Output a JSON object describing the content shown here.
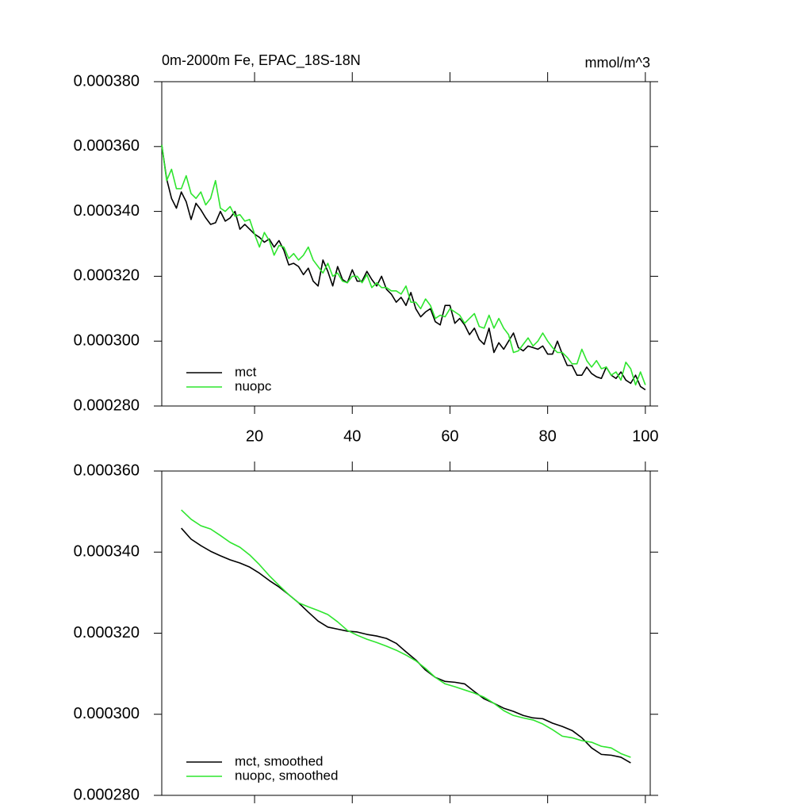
{
  "chart_data": [
    {
      "type": "line",
      "title": "0m-2000m Fe, EPAC_18S-18N",
      "unit_label": "mmol/m^3",
      "x": [
        1,
        2,
        3,
        4,
        5,
        6,
        7,
        8,
        9,
        10,
        11,
        12,
        13,
        14,
        15,
        16,
        17,
        18,
        19,
        20,
        21,
        22,
        23,
        24,
        25,
        26,
        27,
        28,
        29,
        30,
        31,
        32,
        33,
        34,
        35,
        36,
        37,
        38,
        39,
        40,
        41,
        42,
        43,
        44,
        45,
        46,
        47,
        48,
        49,
        50,
        51,
        52,
        53,
        54,
        55,
        56,
        57,
        58,
        59,
        60,
        61,
        62,
        63,
        64,
        65,
        66,
        67,
        68,
        69,
        70,
        71,
        72,
        73,
        74,
        75,
        76,
        77,
        78,
        79,
        80,
        81,
        82,
        83,
        84,
        85,
        86,
        87,
        88,
        89,
        90,
        91,
        92,
        93,
        94,
        95,
        96,
        97,
        98,
        99,
        100
      ],
      "xlim": [
        1,
        101
      ],
      "xticks": [
        20,
        40,
        60,
        80,
        100
      ],
      "ylim": [
        0.00028,
        0.00038
      ],
      "yticks": [
        {
          "value": 0.00028,
          "label": "0.000280"
        },
        {
          "value": 0.0003,
          "label": "0.000300"
        },
        {
          "value": 0.00032,
          "label": "0.000320"
        },
        {
          "value": 0.00034,
          "label": "0.000340"
        },
        {
          "value": 0.00036,
          "label": "0.000360"
        },
        {
          "value": 0.00038,
          "label": "0.000380"
        }
      ],
      "series": [
        {
          "name": "mct",
          "color": "#000000",
          "values": [
            0.0003605,
            0.00035,
            0.000344,
            0.000341,
            0.000346,
            0.000343,
            0.0003375,
            0.0003425,
            0.0003405,
            0.000338,
            0.000336,
            0.0003365,
            0.00034,
            0.000337,
            0.000338,
            0.00034,
            0.0003345,
            0.000336,
            0.0003345,
            0.000333,
            0.000332,
            0.0003305,
            0.0003315,
            0.000329,
            0.000331,
            0.000328,
            0.0003235,
            0.000324,
            0.000323,
            0.0003205,
            0.0003225,
            0.0003185,
            0.000317,
            0.000325,
            0.0003215,
            0.000317,
            0.000323,
            0.000319,
            0.000318,
            0.000322,
            0.0003185,
            0.0003185,
            0.0003215,
            0.000319,
            0.000317,
            0.00032,
            0.000316,
            0.0003145,
            0.000312,
            0.0003135,
            0.000311,
            0.000315,
            0.00031,
            0.0003075,
            0.000309,
            0.00031,
            0.000306,
            0.000305,
            0.000311,
            0.000311,
            0.0003055,
            0.000307,
            0.000305,
            0.000302,
            0.000304,
            0.0003005,
            0.000299,
            0.000304,
            0.0002965,
            0.0002995,
            0.0002975,
            0.0003,
            0.0003025,
            0.000298,
            0.000297,
            0.0002985,
            0.000298,
            0.0002975,
            0.0002985,
            0.000296,
            0.000296,
            0.0003,
            0.000296,
            0.0002925,
            0.0002925,
            0.0002895,
            0.0002895,
            0.000292,
            0.00029,
            0.000289,
            0.0002885,
            0.000292,
            0.0002895,
            0.0002885,
            0.0002905,
            0.000288,
            0.000287,
            0.0002895,
            0.000286,
            0.000285
          ]
        },
        {
          "name": "nuopc",
          "color": "#2ee52e",
          "values": [
            0.0003605,
            0.0003495,
            0.000353,
            0.000347,
            0.000347,
            0.000351,
            0.0003455,
            0.000344,
            0.000346,
            0.000342,
            0.000344,
            0.0003495,
            0.000341,
            0.00034,
            0.0003415,
            0.0003385,
            0.000339,
            0.000337,
            0.0003375,
            0.000333,
            0.000329,
            0.0003335,
            0.000331,
            0.0003265,
            0.0003295,
            0.000329,
            0.0003255,
            0.000327,
            0.000325,
            0.0003265,
            0.000329,
            0.000325,
            0.000323,
            0.000321,
            0.000324,
            0.00032,
            0.000321,
            0.0003185,
            0.000318,
            0.00032,
            0.00032,
            0.000318,
            0.0003205,
            0.0003165,
            0.000318,
            0.0003165,
            0.0003165,
            0.0003155,
            0.0003155,
            0.0003145,
            0.000317,
            0.000312,
            0.000312,
            0.00031,
            0.000313,
            0.000311,
            0.000307,
            0.000308,
            0.0003075,
            0.00031,
            0.000309,
            0.000308,
            0.0003055,
            0.000307,
            0.0003085,
            0.0003045,
            0.000304,
            0.000308,
            0.000304,
            0.000307,
            0.000304,
            0.000302,
            0.0002965,
            0.000297,
            0.000299,
            0.000301,
            0.0002985,
            0.0003,
            0.0003025,
            0.0003,
            0.000298,
            0.0002965,
            0.0002965,
            0.000295,
            0.000293,
            0.000293,
            0.0002975,
            0.000294,
            0.000292,
            0.000294,
            0.0002915,
            0.000292,
            0.0002895,
            0.0002905,
            0.000288,
            0.0002935,
            0.0002915,
            0.0002865,
            0.0002905,
            0.0002865
          ]
        }
      ]
    },
    {
      "type": "line",
      "x": [
        5,
        7,
        9,
        11,
        13,
        15,
        17,
        19,
        21,
        23,
        25,
        27,
        29,
        31,
        33,
        35,
        37,
        39,
        41,
        43,
        45,
        47,
        49,
        51,
        53,
        55,
        57,
        59,
        61,
        63,
        65,
        67,
        69,
        71,
        73,
        75,
        77,
        79,
        81,
        83,
        85,
        87,
        89,
        91,
        93,
        95,
        97
      ],
      "xlim": [
        1,
        101
      ],
      "xticks": [
        20,
        40,
        60,
        80,
        100
      ],
      "ylim": [
        0.00028,
        0.00036
      ],
      "yticks": [
        {
          "value": 0.00028,
          "label": "0.000280"
        },
        {
          "value": 0.0003,
          "label": "0.000300"
        },
        {
          "value": 0.00032,
          "label": "0.000320"
        },
        {
          "value": 0.00034,
          "label": "0.000340"
        },
        {
          "value": 0.00036,
          "label": "0.000360"
        }
      ],
      "series": [
        {
          "name": "mct, smoothed",
          "color": "#000000",
          "values": [
            0.0003459,
            0.0003432,
            0.0003416,
            0.0003402,
            0.0003391,
            0.0003381,
            0.0003373,
            0.0003363,
            0.0003348,
            0.000333,
            0.0003314,
            0.0003295,
            0.0003275,
            0.0003252,
            0.000323,
            0.0003215,
            0.000321,
            0.0003205,
            0.0003203,
            0.0003197,
            0.0003193,
            0.0003187,
            0.0003175,
            0.0003154,
            0.0003134,
            0.0003109,
            0.0003091,
            0.0003081,
            0.0003079,
            0.0003075,
            0.0003056,
            0.0003038,
            0.0003027,
            0.0003015,
            0.0003007,
            0.0002997,
            0.0002991,
            0.0002989,
            0.0002978,
            0.000297,
            0.000296,
            0.0002942,
            0.0002917,
            0.0002901,
            0.0002899,
            0.0002894,
            0.000288
          ]
        },
        {
          "name": "nuopc, smoothed",
          "color": "#2ee52e",
          "values": [
            0.0003504,
            0.0003481,
            0.0003465,
            0.0003457,
            0.0003441,
            0.0003424,
            0.0003412,
            0.0003393,
            0.0003369,
            0.0003342,
            0.0003318,
            0.0003295,
            0.0003275,
            0.0003265,
            0.0003256,
            0.0003246,
            0.0003228,
            0.0003207,
            0.0003195,
            0.0003185,
            0.0003177,
            0.0003168,
            0.0003158,
            0.0003146,
            0.0003132,
            0.0003113,
            0.0003091,
            0.0003075,
            0.0003068,
            0.000306,
            0.0003052,
            0.0003042,
            0.0003027,
            0.0003009,
            0.0002997,
            0.0002991,
            0.0002986,
            0.0002976,
            0.0002962,
            0.0002946,
            0.0002942,
            0.0002935,
            0.0002931,
            0.0002921,
            0.0002917,
            0.0002903,
            0.0002894
          ]
        }
      ]
    }
  ]
}
